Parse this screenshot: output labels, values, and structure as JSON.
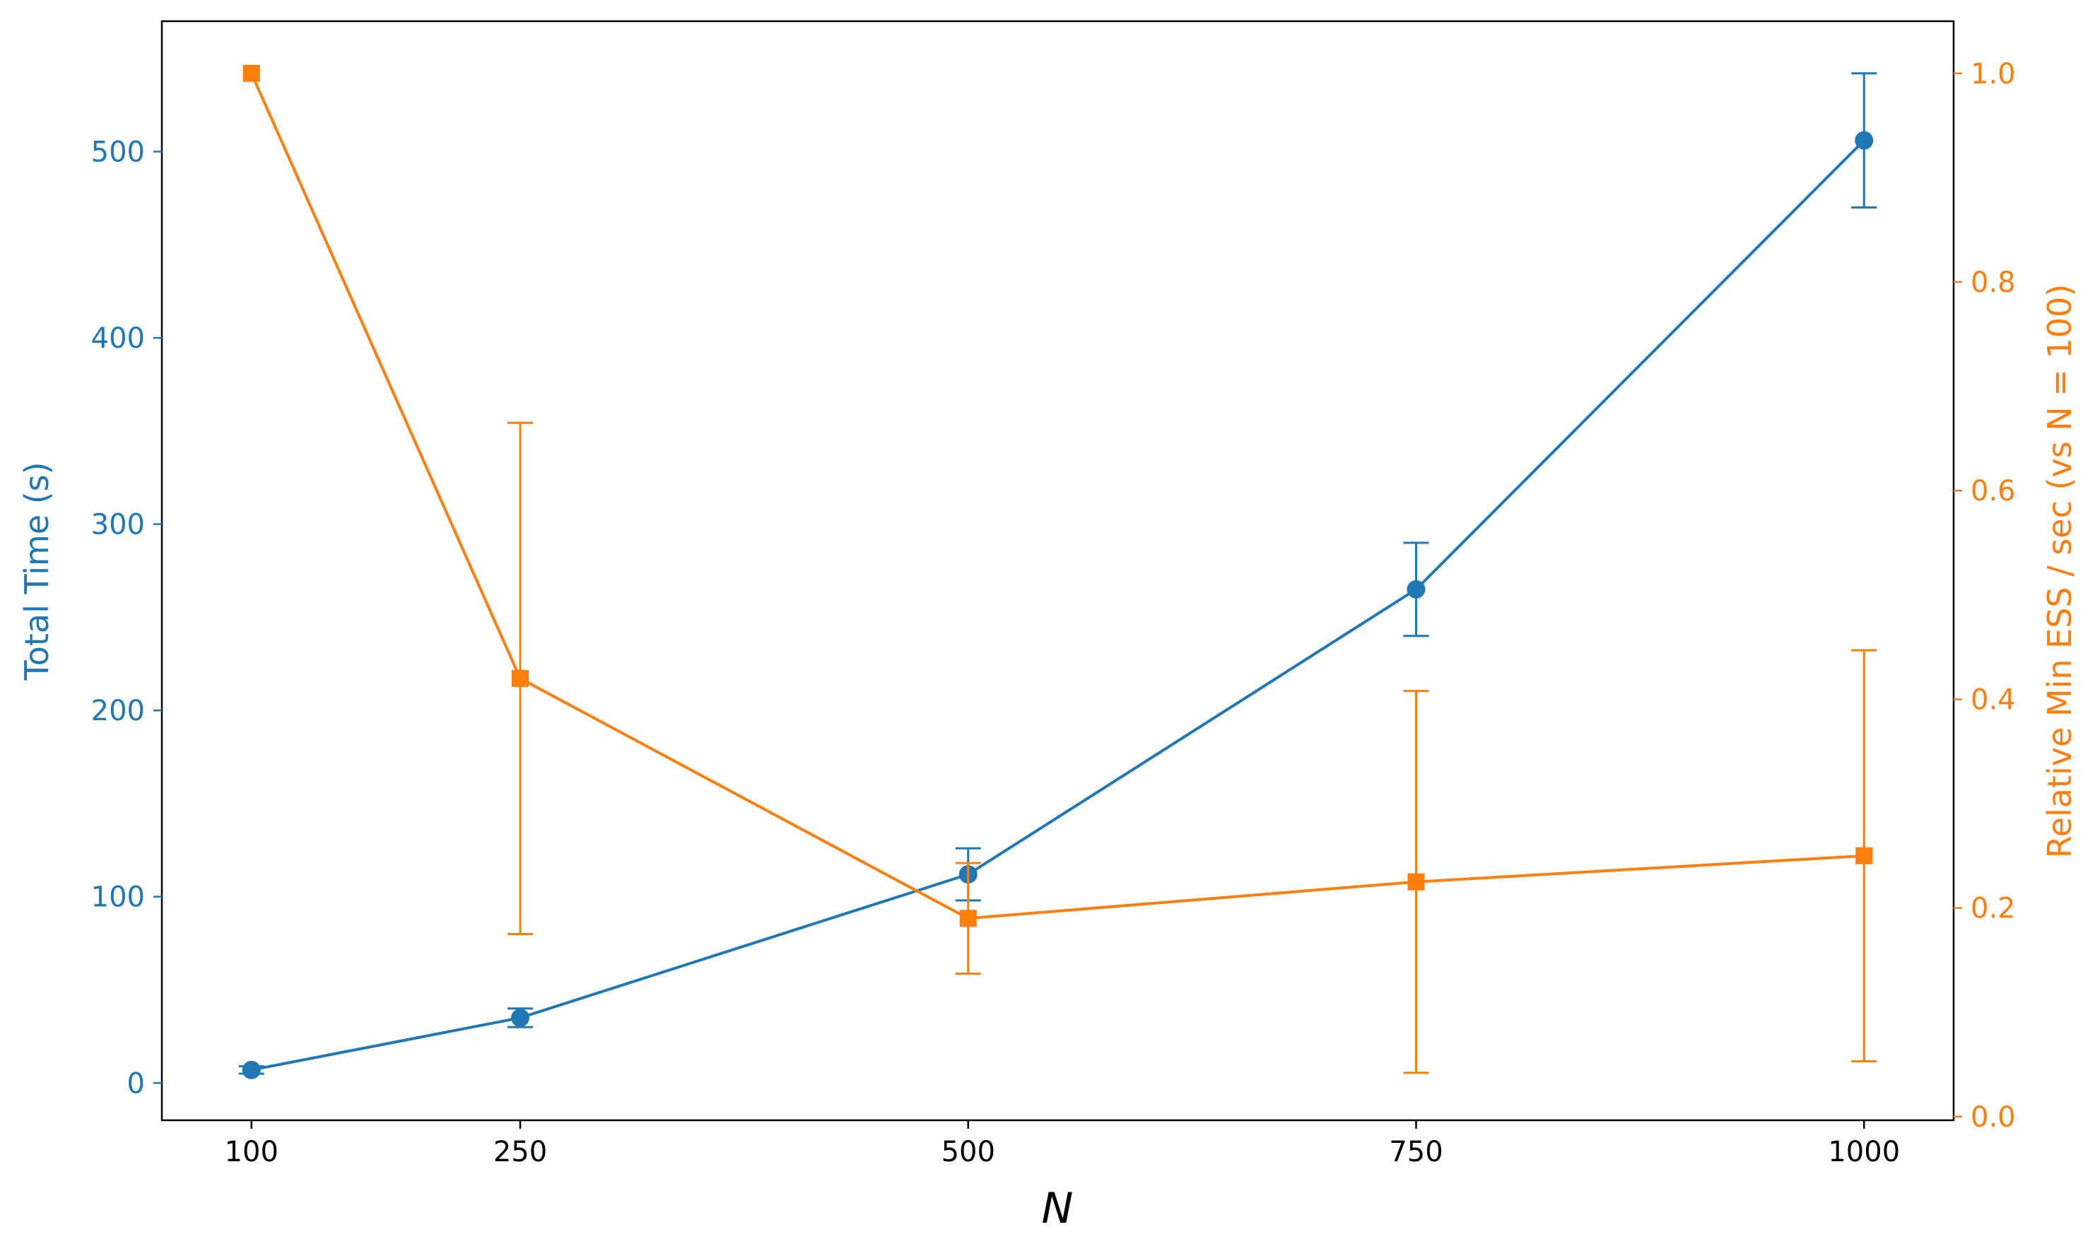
{
  "chart_data": {
    "type": "line",
    "xlabel": "N",
    "ylabel": "Total Time (s)",
    "ylabel_right": "Relative Min ESS / sec (vs N = 100)",
    "x": [
      100,
      250,
      500,
      750,
      1000
    ],
    "x_ticks": [
      "100",
      "250",
      "500",
      "750",
      "1000"
    ],
    "xlim": [
      50,
      1050
    ],
    "ylim": [
      -20,
      570
    ],
    "y_ticks": [
      "0",
      "100",
      "200",
      "300",
      "400",
      "500"
    ],
    "ylim_right": [
      -0.0035,
      1.05
    ],
    "y_ticks_right": [
      "0.0",
      "0.2",
      "0.4",
      "0.6",
      "0.8",
      "1.0"
    ],
    "grid": false,
    "series": [
      {
        "axis": "left",
        "marker": "circle",
        "color": "#1f77b4",
        "y": [
          7,
          35,
          112,
          265,
          506
        ],
        "err": [
          2,
          5,
          14,
          25,
          36
        ]
      },
      {
        "axis": "right",
        "marker": "square",
        "color": "#ff7f0e",
        "y": [
          1.0,
          0.42,
          0.19,
          0.225,
          0.25
        ],
        "err": [
          0,
          0.245,
          0.053,
          0.183,
          0.197
        ]
      }
    ]
  }
}
